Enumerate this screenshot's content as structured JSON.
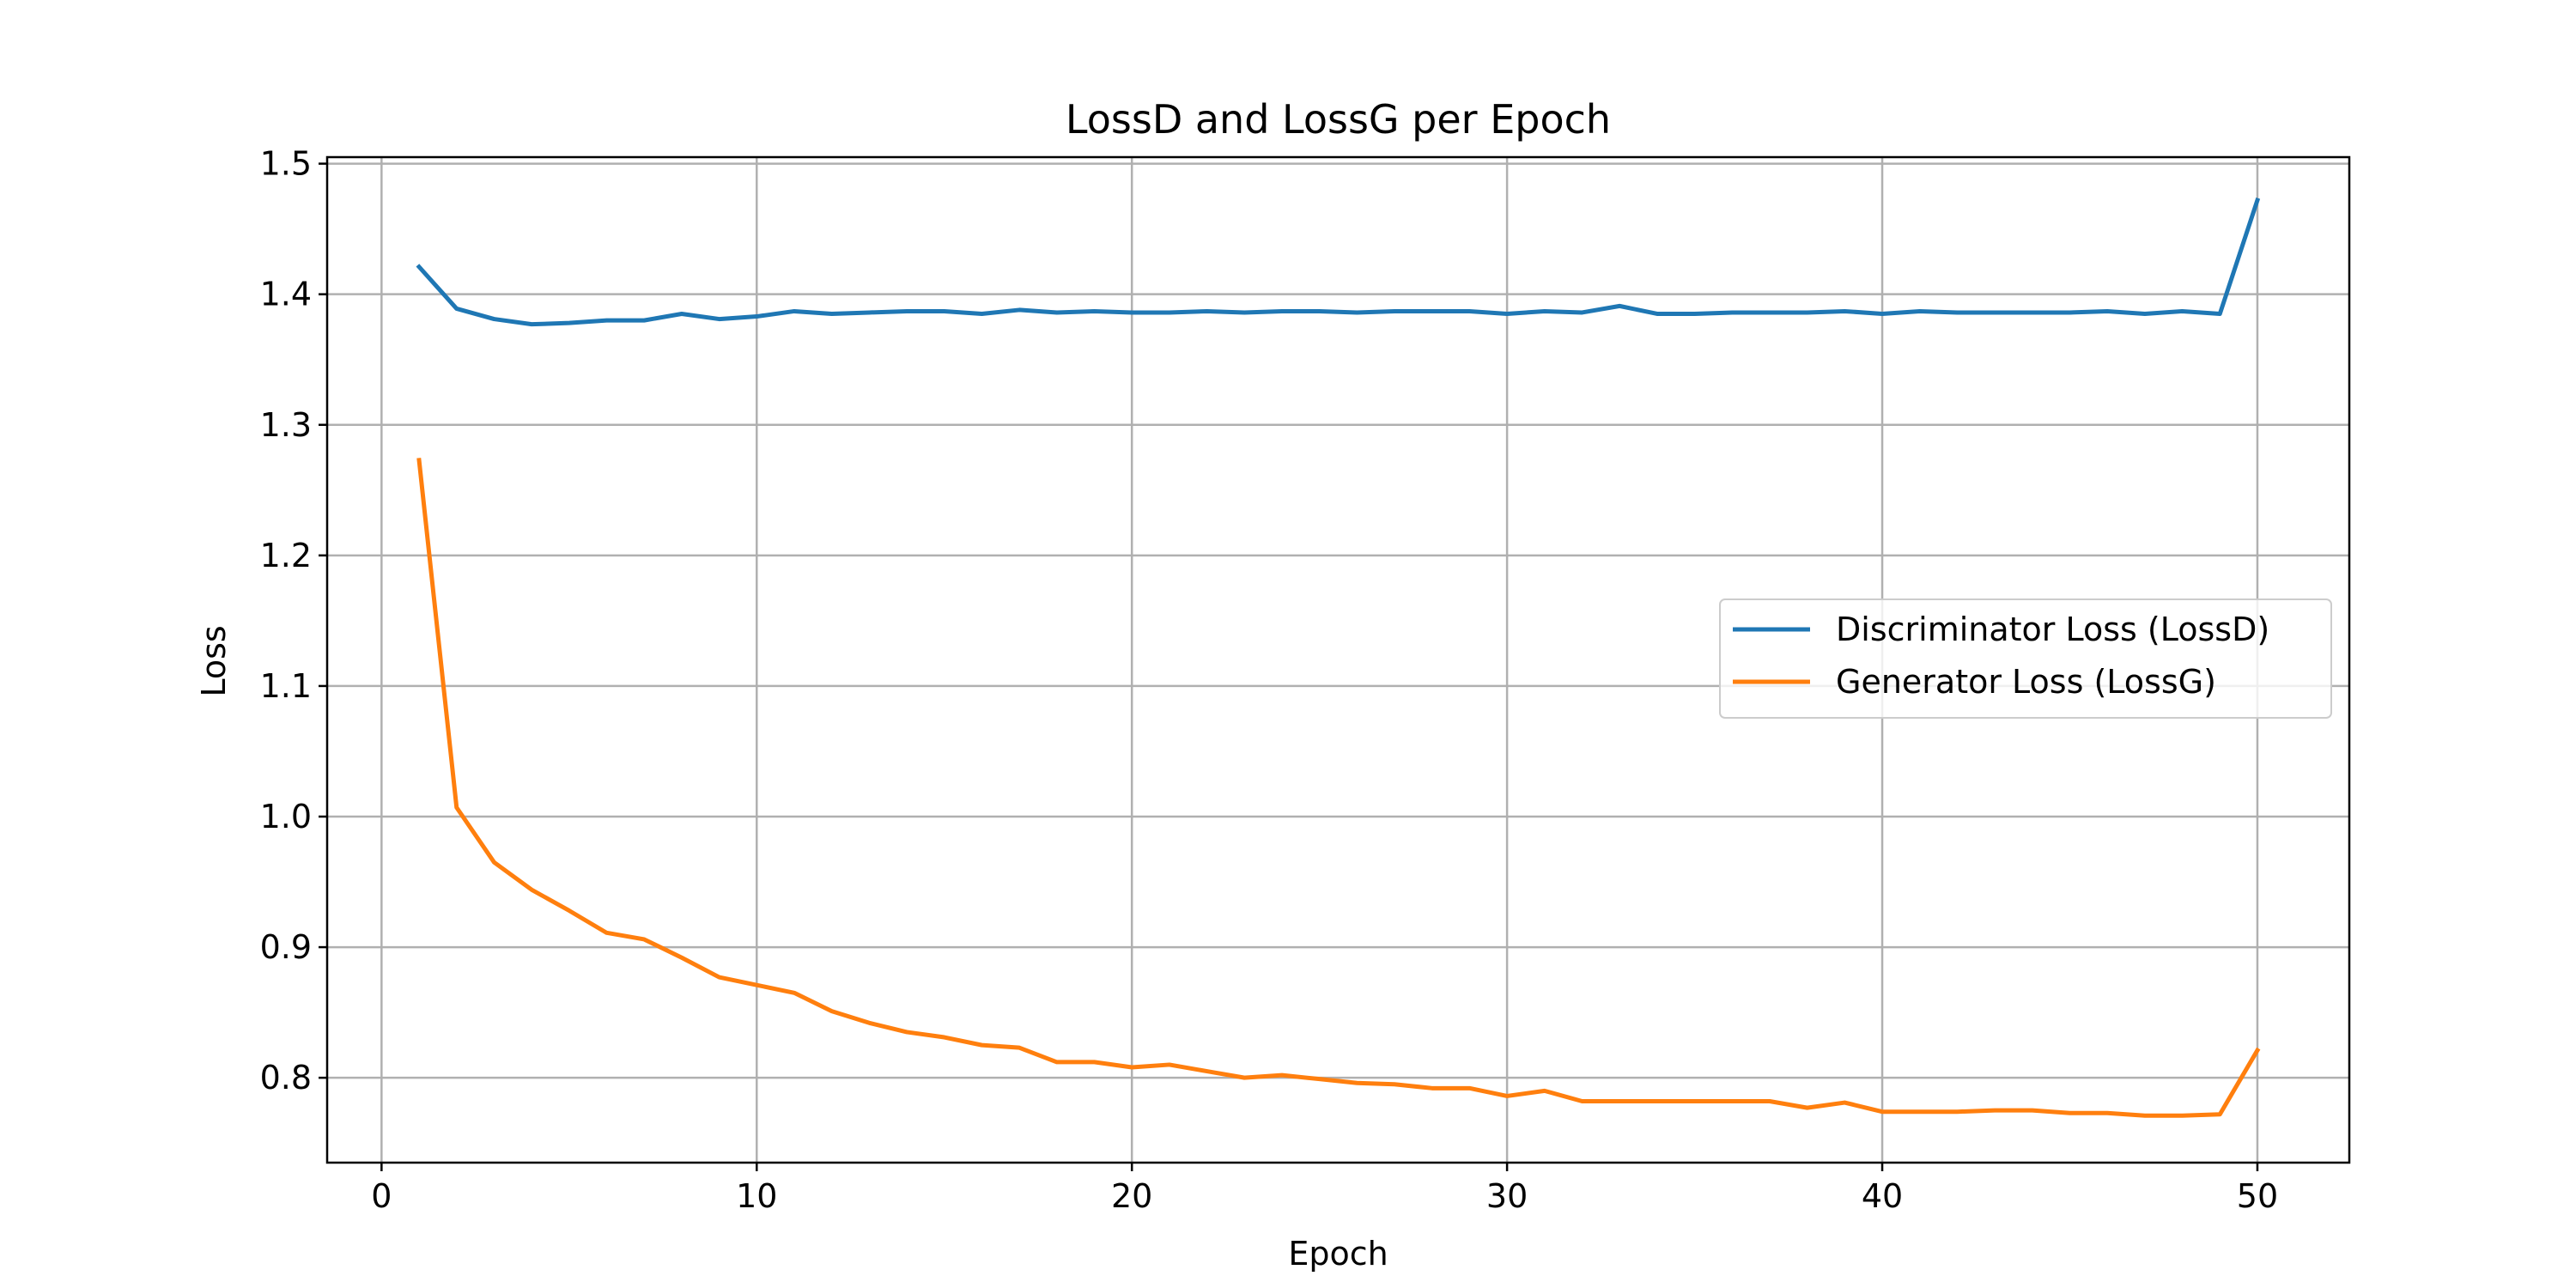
{
  "chart_data": {
    "type": "line",
    "title": "LossD and LossG per Epoch",
    "xlabel": "Epoch",
    "ylabel": "Loss",
    "xlim": [
      -1.45,
      52.45
    ],
    "ylim": [
      0.735,
      1.505
    ],
    "xticks": [
      0,
      10,
      20,
      30,
      40,
      50
    ],
    "xtick_labels": [
      "0",
      "10",
      "20",
      "30",
      "40",
      "50"
    ],
    "yticks": [
      0.8,
      0.9,
      1.0,
      1.1,
      1.2,
      1.3,
      1.4,
      1.5
    ],
    "ytick_labels": [
      "0.8",
      "0.9",
      "1.0",
      "1.1",
      "1.2",
      "1.3",
      "1.4",
      "1.5"
    ],
    "grid": true,
    "legend_position": "center-right",
    "x": [
      1,
      2,
      3,
      4,
      5,
      6,
      7,
      8,
      9,
      10,
      11,
      12,
      13,
      14,
      15,
      16,
      17,
      18,
      19,
      20,
      21,
      22,
      23,
      24,
      25,
      26,
      27,
      28,
      29,
      30,
      31,
      32,
      33,
      34,
      35,
      36,
      37,
      38,
      39,
      40,
      41,
      42,
      43,
      44,
      45,
      46,
      47,
      48,
      49,
      50
    ],
    "series": [
      {
        "name": "Discriminator Loss (LossD)",
        "color": "#1f77b4",
        "values": [
          1.421,
          1.389,
          1.381,
          1.377,
          1.378,
          1.38,
          1.38,
          1.385,
          1.381,
          1.383,
          1.387,
          1.385,
          1.386,
          1.387,
          1.387,
          1.385,
          1.388,
          1.386,
          1.387,
          1.386,
          1.386,
          1.387,
          1.386,
          1.387,
          1.387,
          1.386,
          1.387,
          1.387,
          1.387,
          1.385,
          1.387,
          1.386,
          1.391,
          1.385,
          1.385,
          1.386,
          1.386,
          1.386,
          1.387,
          1.385,
          1.387,
          1.386,
          1.386,
          1.386,
          1.386,
          1.387,
          1.385,
          1.387,
          1.385,
          1.472
        ]
      },
      {
        "name": "Generator Loss (LossG)",
        "color": "#ff7f0e",
        "values": [
          1.273,
          1.007,
          0.965,
          0.944,
          0.928,
          0.911,
          0.906,
          0.892,
          0.877,
          0.871,
          0.865,
          0.851,
          0.842,
          0.835,
          0.831,
          0.825,
          0.823,
          0.812,
          0.812,
          0.808,
          0.81,
          0.805,
          0.8,
          0.802,
          0.799,
          0.796,
          0.795,
          0.792,
          0.792,
          0.786,
          0.79,
          0.782,
          0.782,
          0.782,
          0.782,
          0.782,
          0.782,
          0.777,
          0.781,
          0.774,
          0.774,
          0.774,
          0.775,
          0.775,
          0.773,
          0.773,
          0.771,
          0.771,
          0.772,
          0.821
        ]
      }
    ]
  }
}
